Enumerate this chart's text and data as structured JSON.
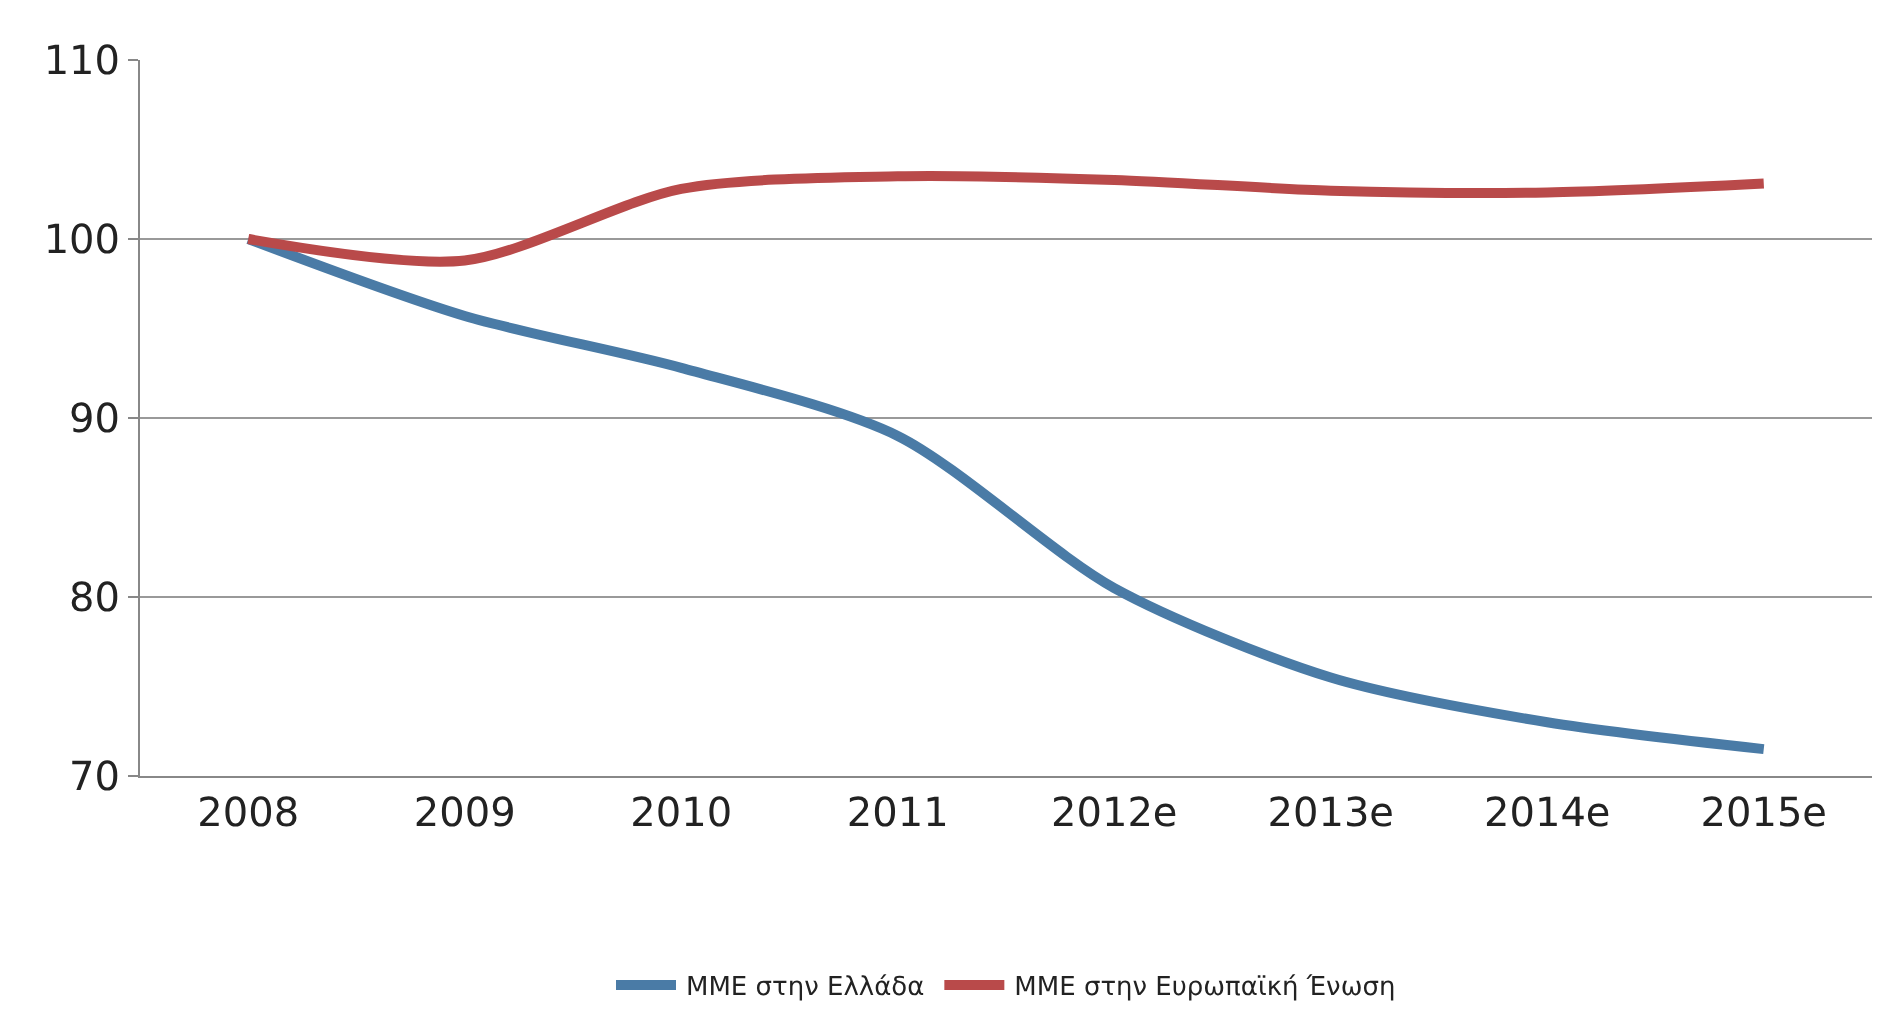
{
  "chart_data": {
    "type": "line",
    "categories": [
      "2008",
      "2009",
      "2010",
      "2011",
      "2012e",
      "2013e",
      "2014e",
      "2015e"
    ],
    "series": [
      {
        "name": "ΜΜΕ στην Ελλάδα",
        "color": "#4a7ba6",
        "values": [
          100,
          95.7,
          92.8,
          89,
          80.5,
          75.5,
          73,
          71.5
        ]
      },
      {
        "name": "ΜΜΕ στην Ευρωπαϊκή Ένωση",
        "color": "#b94a4a",
        "values": [
          100,
          98.8,
          102.8,
          103.5,
          103.3,
          102.7,
          102.6,
          103.1
        ]
      }
    ],
    "ylim": [
      70,
      110
    ],
    "yticks": [
      70,
      80,
      90,
      100,
      110
    ],
    "grid": "y",
    "legend": "bottom",
    "marker": "none",
    "line_style": "solid"
  }
}
